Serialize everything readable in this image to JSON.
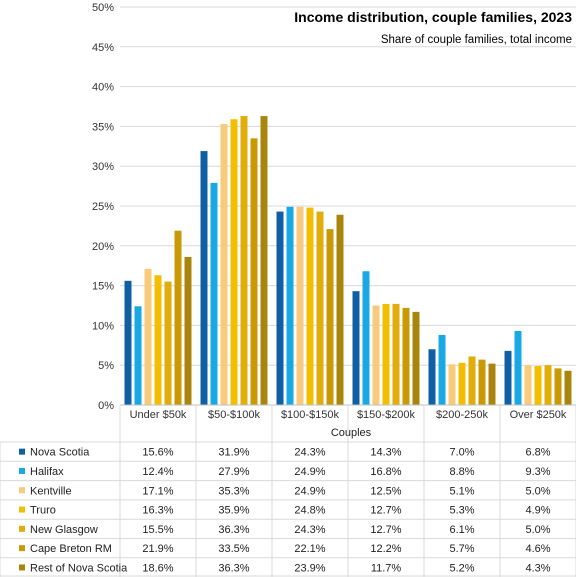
{
  "chart_data": {
    "type": "bar",
    "title": "Income distribution,  couple families, 2023",
    "subtitle": "Share of couple families, total income",
    "xlabel": "Couples",
    "ylabel": "",
    "ylim": [
      0,
      50
    ],
    "yticks": [
      "0%",
      "5%",
      "10%",
      "15%",
      "20%",
      "25%",
      "30%",
      "35%",
      "40%",
      "45%",
      "50%"
    ],
    "grid": true,
    "legend": "data table below chart",
    "categories": [
      "Under $50k",
      "$50-$100k",
      "$100-$150k",
      "$150-$200k",
      "$200-250k",
      "Over $250k"
    ],
    "series": [
      {
        "name": "Nova Scotia",
        "color": "#0e5fa3",
        "values": [
          15.6,
          31.9,
          24.3,
          14.3,
          7.0,
          6.8
        ],
        "labels": [
          "15.6%",
          "31.9%",
          "24.3%",
          "14.3%",
          "7.0%",
          "6.8%"
        ]
      },
      {
        "name": "Halifax",
        "color": "#18a9e4",
        "values": [
          12.4,
          27.9,
          24.9,
          16.8,
          8.8,
          9.3
        ],
        "labels": [
          "12.4%",
          "27.9%",
          "24.9%",
          "16.8%",
          "8.8%",
          "9.3%"
        ]
      },
      {
        "name": "Kentville",
        "color": "#f8cb7c",
        "values": [
          17.1,
          35.3,
          24.9,
          12.5,
          5.1,
          5.0
        ],
        "labels": [
          "17.1%",
          "35.3%",
          "24.9%",
          "12.5%",
          "5.1%",
          "5.0%"
        ]
      },
      {
        "name": "Truro",
        "color": "#f2be00",
        "values": [
          16.3,
          35.9,
          24.8,
          12.7,
          5.3,
          4.9
        ],
        "labels": [
          "16.3%",
          "35.9%",
          "24.8%",
          "12.7%",
          "5.3%",
          "4.9%"
        ]
      },
      {
        "name": "New Glasgow",
        "color": "#e0ad0a",
        "values": [
          15.5,
          36.3,
          24.3,
          12.7,
          6.1,
          5.0
        ],
        "labels": [
          "15.5%",
          "36.3%",
          "24.3%",
          "12.7%",
          "6.1%",
          "5.0%"
        ]
      },
      {
        "name": "Cape Breton RM",
        "color": "#c99a06",
        "values": [
          21.9,
          33.5,
          22.1,
          12.2,
          5.7,
          4.6
        ],
        "labels": [
          "21.9%",
          "33.5%",
          "22.1%",
          "12.2%",
          "5.7%",
          "4.6%"
        ]
      },
      {
        "name": "Rest of Nova Scotia",
        "color": "#a8860c",
        "values": [
          18.6,
          36.3,
          23.9,
          11.7,
          5.2,
          4.3
        ],
        "labels": [
          "18.6%",
          "36.3%",
          "23.9%",
          "11.7%",
          "5.2%",
          "4.3%"
        ]
      }
    ]
  }
}
